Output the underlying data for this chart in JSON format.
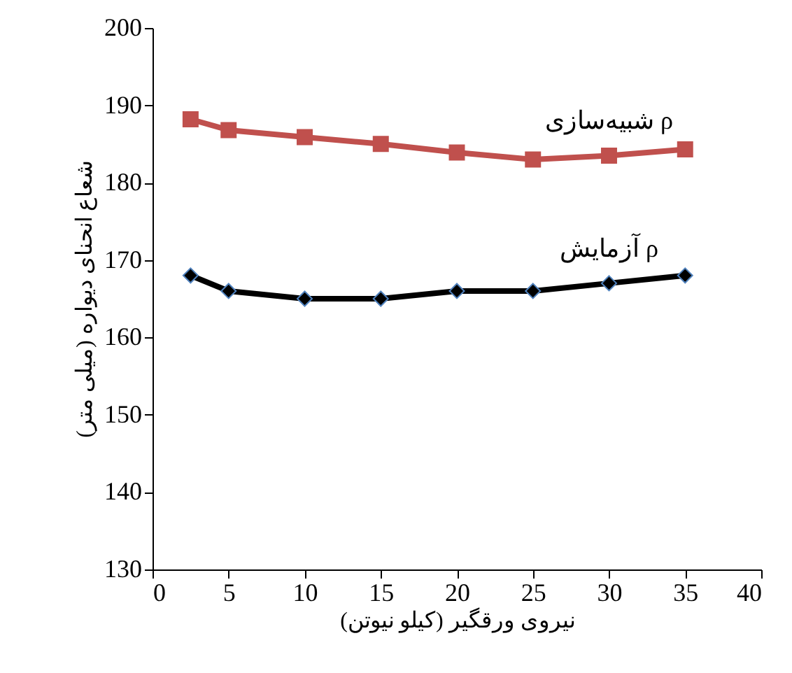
{
  "chart_data": {
    "type": "line",
    "xlabel": "نیروی ورقگیر (کیلو نیوتن)",
    "ylabel": "شعاع انحنای دیواره (میلی متر)",
    "x": [
      2.5,
      5,
      10,
      15,
      20,
      25,
      30,
      35
    ],
    "series": [
      {
        "name": "شبیه‌سازی ρ",
        "color": "#c0504d",
        "marker": "square",
        "values": [
          188.2,
          186.8,
          185.9,
          185.0,
          183.9,
          183.0,
          183.5,
          184.3
        ]
      },
      {
        "name": "آزمایش ρ",
        "color": "#000000",
        "marker": "diamond",
        "values": [
          168,
          166,
          165,
          165,
          166,
          166,
          167,
          168
        ]
      }
    ],
    "xlim": [
      0,
      40
    ],
    "xticks": [
      0,
      5,
      10,
      15,
      20,
      25,
      30,
      35,
      40
    ],
    "ylim": [
      130,
      200
    ],
    "yticks": [
      130,
      140,
      150,
      160,
      170,
      180,
      190,
      200
    ],
    "grid": false,
    "line_style": "solid"
  }
}
